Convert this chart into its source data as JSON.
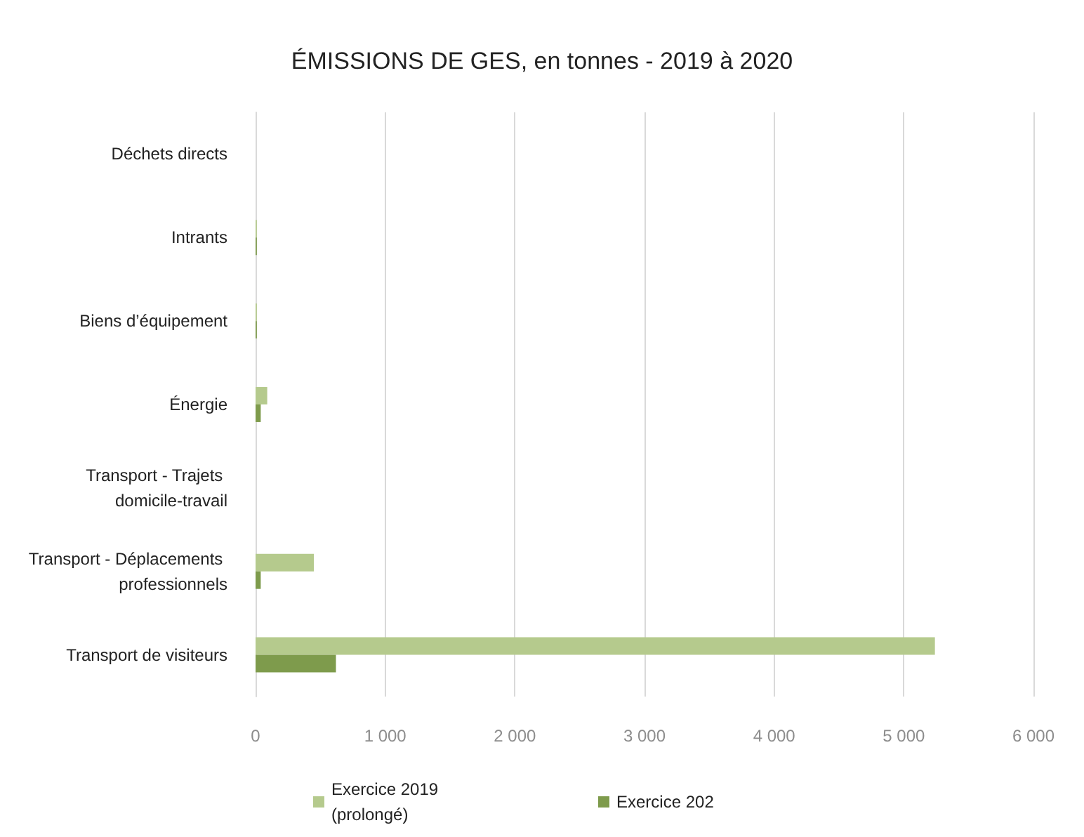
{
  "chart_data": {
    "type": "bar",
    "orientation": "horizontal",
    "title": "ÉMISSIONS DE GES, en tonnes - 2019 à 2020",
    "categories": [
      "Déchets directs",
      "Intrants",
      "Biens d’équipement",
      "Énergie",
      "Transport - Trajets domicile-travail",
      "Transport - Déplacements professionnels",
      "Transport de visiteurs"
    ],
    "series": [
      {
        "name": "Exercice 2019 (prolongé)",
        "color": "#b5ca8d",
        "values": [
          0,
          10,
          10,
          90,
          0,
          450,
          5240
        ]
      },
      {
        "name": "Exercice 202",
        "color": "#7e9b4c",
        "values": [
          0,
          10,
          10,
          40,
          0,
          40,
          620
        ]
      }
    ],
    "xlim": [
      0,
      6000
    ],
    "xticks": [
      0,
      1000,
      2000,
      3000,
      4000,
      5000,
      6000
    ],
    "grid": "x",
    "legend": "bottom"
  }
}
